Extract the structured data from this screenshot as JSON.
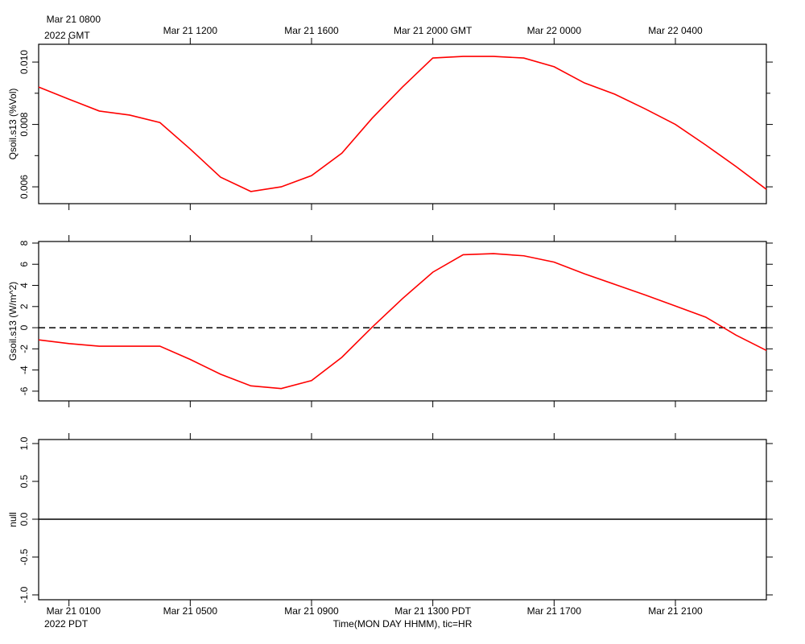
{
  "chart_data": [
    {
      "type": "line",
      "ylabel": "Qsoil.s13 (%Vol)",
      "color": "#ff0000",
      "x": [
        0,
        1,
        2,
        3,
        4,
        5,
        6,
        7,
        8,
        9,
        10,
        11,
        12,
        13,
        14,
        15,
        16,
        17,
        18,
        19,
        20,
        21,
        22,
        23,
        24
      ],
      "values": [
        0.0092,
        0.00881,
        0.00843,
        0.0083,
        0.00806,
        0.00721,
        0.00631,
        0.00585,
        0.006,
        0.00636,
        0.00708,
        0.0082,
        0.0092,
        0.01013,
        0.01018,
        0.01018,
        0.01013,
        0.00985,
        0.00933,
        0.00897,
        0.0085,
        0.008,
        0.00734,
        0.00665,
        0.00592
      ],
      "xlim": [
        0,
        24
      ],
      "xticks": [
        {
          "value": 1,
          "label": "Mar 21 0800"
        },
        {
          "value": 5,
          "label": "Mar 21 1200"
        },
        {
          "value": 9,
          "label": "Mar 21 1600"
        },
        {
          "value": 13,
          "label": "Mar 21 2000 GMT"
        },
        {
          "value": 17,
          "label": "Mar 22 0000"
        },
        {
          "value": 21,
          "label": "Mar 22 0400"
        }
      ],
      "x_year_label": "2022 GMT",
      "ylim": [
        0.00546,
        0.01057
      ],
      "yticks": [
        {
          "value": 0.01,
          "label": "0.010"
        },
        {
          "value": 0.008,
          "label": "0.008"
        },
        {
          "value": 0.006,
          "label": "0.006"
        }
      ],
      "yminor": [
        0.009,
        0.007
      ]
    },
    {
      "type": "line",
      "ylabel": "Gsoil.s13 (W/m^2)",
      "color": "#ff0000",
      "x": [
        0,
        1,
        2,
        3,
        4,
        5,
        6,
        7,
        8,
        9,
        10,
        11,
        12,
        13,
        14,
        15,
        16,
        17,
        18,
        19,
        20,
        21,
        22,
        23,
        24
      ],
      "values": [
        -1.15,
        -1.5,
        -1.75,
        -1.75,
        -1.75,
        -3.0,
        -4.4,
        -5.5,
        -5.75,
        -5.0,
        -2.8,
        0.05,
        2.75,
        5.25,
        6.9,
        7.0,
        6.8,
        6.2,
        5.1,
        4.1,
        3.1,
        2.05,
        1.0,
        -0.7,
        -2.15
      ],
      "xlim": [
        0,
        24
      ],
      "ylim": [
        -6.92,
        8.15
      ],
      "yticks": [
        -6,
        -4,
        -2,
        0,
        2,
        4,
        6,
        8
      ],
      "zero_line": "dashed"
    },
    {
      "type": "line",
      "ylabel": "null",
      "xlim": [
        0,
        24
      ],
      "xticks": [
        {
          "value": 1,
          "label": "Mar 21 0100"
        },
        {
          "value": 5,
          "label": "Mar 21 0500"
        },
        {
          "value": 9,
          "label": "Mar 21 0900"
        },
        {
          "value": 13,
          "label": "Mar 21 1300 PDT"
        },
        {
          "value": 17,
          "label": "Mar 21 1700"
        },
        {
          "value": 21,
          "label": "Mar 21 2100"
        }
      ],
      "x_year_label": "2022 PDT",
      "xlabel": "Time(MON DAY HHMM), tic=HR",
      "ylim": [
        -1.064,
        1.053
      ],
      "yticks": [
        {
          "value": 1,
          "label": "1.0"
        },
        {
          "value": 0.5,
          "label": "0.5"
        },
        {
          "value": 0,
          "label": "0.0"
        },
        {
          "value": -0.5,
          "label": "-0.5"
        },
        {
          "value": -1,
          "label": "-1.0"
        }
      ],
      "zero_line": "solid"
    }
  ]
}
